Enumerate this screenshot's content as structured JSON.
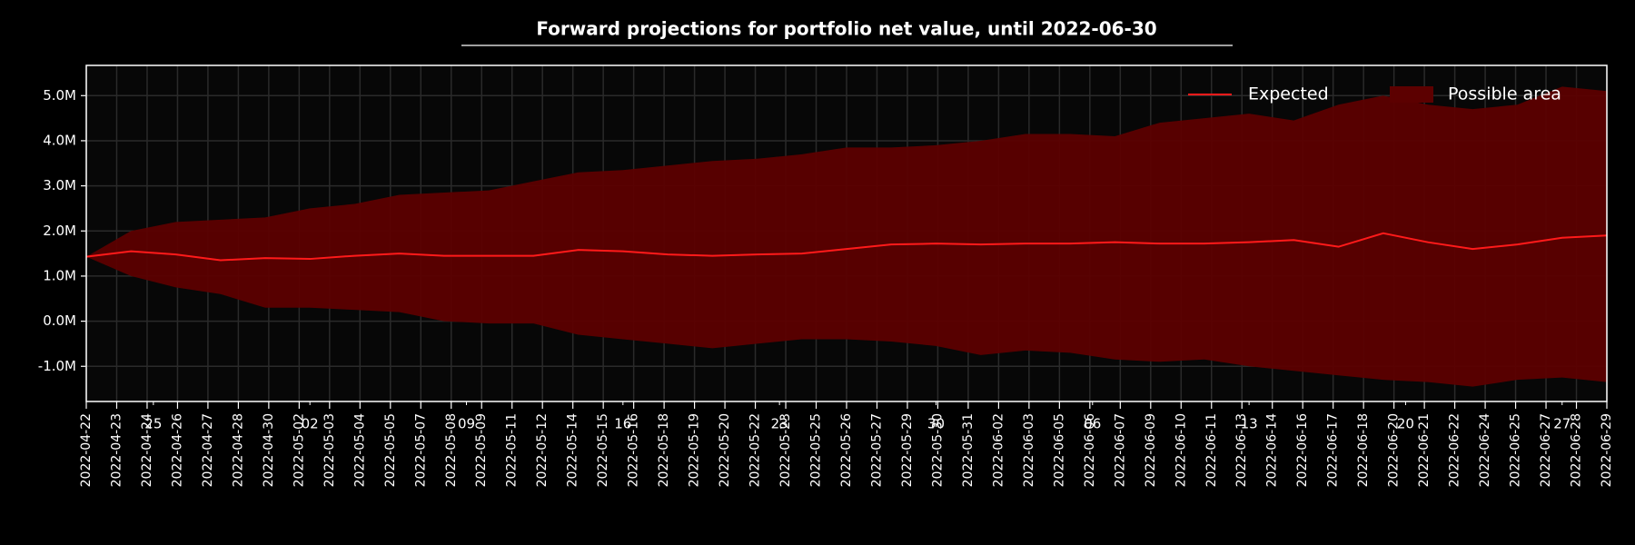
{
  "chart_data": {
    "type": "band-line",
    "title": "Forward projections for portfolio net value, until 2022-06-30",
    "x": [
      "2022-04-22",
      "2022-04-24",
      "2022-04-26",
      "2022-04-28",
      "2022-04-30",
      "2022-05-02",
      "2022-05-04",
      "2022-05-06",
      "2022-05-08",
      "2022-05-10",
      "2022-05-12",
      "2022-05-14",
      "2022-05-16",
      "2022-05-18",
      "2022-05-20",
      "2022-05-22",
      "2022-05-24",
      "2022-05-26",
      "2022-05-28",
      "2022-05-30",
      "2022-06-01",
      "2022-06-03",
      "2022-06-05",
      "2022-06-07",
      "2022-06-09",
      "2022-06-11",
      "2022-06-13",
      "2022-06-15",
      "2022-06-17",
      "2022-06-19",
      "2022-06-21",
      "2022-06-23",
      "2022-06-25",
      "2022-06-27",
      "2022-06-29"
    ],
    "series": [
      {
        "name": "Expected",
        "color": "#ff1a1a",
        "values": [
          1430000,
          1550000,
          1480000,
          1350000,
          1400000,
          1380000,
          1450000,
          1500000,
          1450000,
          1450000,
          1450000,
          1580000,
          1550000,
          1480000,
          1450000,
          1480000,
          1500000,
          1600000,
          1700000,
          1720000,
          1700000,
          1720000,
          1720000,
          1750000,
          1720000,
          1720000,
          1750000,
          1800000,
          1650000,
          1950000,
          1750000,
          1600000,
          1700000,
          1850000,
          1900000
        ]
      },
      {
        "name": "Possible area",
        "color": "#5c0000",
        "upper": [
          1430000,
          2000000,
          2200000,
          2250000,
          2300000,
          2500000,
          2600000,
          2800000,
          2850000,
          2900000,
          3100000,
          3300000,
          3350000,
          3450000,
          3550000,
          3600000,
          3700000,
          3850000,
          3850000,
          3900000,
          4000000,
          4150000,
          4150000,
          4100000,
          4400000,
          4500000,
          4600000,
          4450000,
          4800000,
          5000000,
          4800000,
          4700000,
          4800000,
          5200000,
          5100000
        ],
        "lower": [
          1430000,
          1000000,
          750000,
          600000,
          300000,
          300000,
          250000,
          200000,
          0,
          -50000,
          -50000,
          -300000,
          -400000,
          -500000,
          -600000,
          -500000,
          -400000,
          -400000,
          -450000,
          -550000,
          -750000,
          -650000,
          -700000,
          -850000,
          -900000,
          -850000,
          -1000000,
          -1100000,
          -1200000,
          -1300000,
          -1350000,
          -1450000,
          -1300000,
          -1250000,
          -1350000
        ]
      }
    ],
    "xlim": [
      "2022-04-22",
      "2022-06-29"
    ],
    "xticks": [
      "2022-04-22",
      "2022-04-23",
      "2022-04-24",
      "2022-04-26",
      "2022-04-27",
      "2022-04-28",
      "2022-04-30",
      "2022-05-02",
      "2022-05-03",
      "2022-05-04",
      "2022-05-05",
      "2022-05-07",
      "2022-05-08",
      "2022-05-09",
      "2022-05-11",
      "2022-05-12",
      "2022-05-14",
      "2022-05-15",
      "2022-05-16",
      "2022-05-18",
      "2022-05-19",
      "2022-05-20",
      "2022-05-22",
      "2022-05-23",
      "2022-05-25",
      "2022-05-26",
      "2022-05-27",
      "2022-05-29",
      "2022-05-30",
      "2022-05-31",
      "2022-06-02",
      "2022-06-03",
      "2022-06-05",
      "2022-06-06",
      "2022-06-07",
      "2022-06-09",
      "2022-06-10",
      "2022-06-11",
      "2022-06-13",
      "2022-06-14",
      "2022-06-16",
      "2022-06-17",
      "2022-06-18",
      "2022-06-20",
      "2022-06-21",
      "2022-06-22",
      "2022-06-24",
      "2022-06-25",
      "2022-06-27",
      "2022-06-28",
      "2022-06-29"
    ],
    "xminorticks": [
      {
        "value": "2022-04-25",
        "label": "25"
      },
      {
        "value": "2022-05-02",
        "label": "02"
      },
      {
        "value": "2022-05-09",
        "label": "09"
      },
      {
        "value": "2022-05-16",
        "label": "16"
      },
      {
        "value": "2022-05-23",
        "label": "23"
      },
      {
        "value": "2022-05-30",
        "label": "30"
      },
      {
        "value": "2022-06-06",
        "label": "06"
      },
      {
        "value": "2022-06-13",
        "label": "13"
      },
      {
        "value": "2022-06-20",
        "label": "20"
      },
      {
        "value": "2022-06-27",
        "label": "27"
      }
    ],
    "ylim": [
      -1780000,
      5670000
    ],
    "yticks": [
      {
        "value": -1000000,
        "label": "-1.0M"
      },
      {
        "value": 0,
        "label": "0.0M"
      },
      {
        "value": 1000000,
        "label": "1.0M"
      },
      {
        "value": 2000000,
        "label": "2.0M"
      },
      {
        "value": 3000000,
        "label": "3.0M"
      },
      {
        "value": 4000000,
        "label": "4.0M"
      },
      {
        "value": 5000000,
        "label": "5.0M"
      }
    ],
    "grid": true,
    "legend": "upper right"
  }
}
